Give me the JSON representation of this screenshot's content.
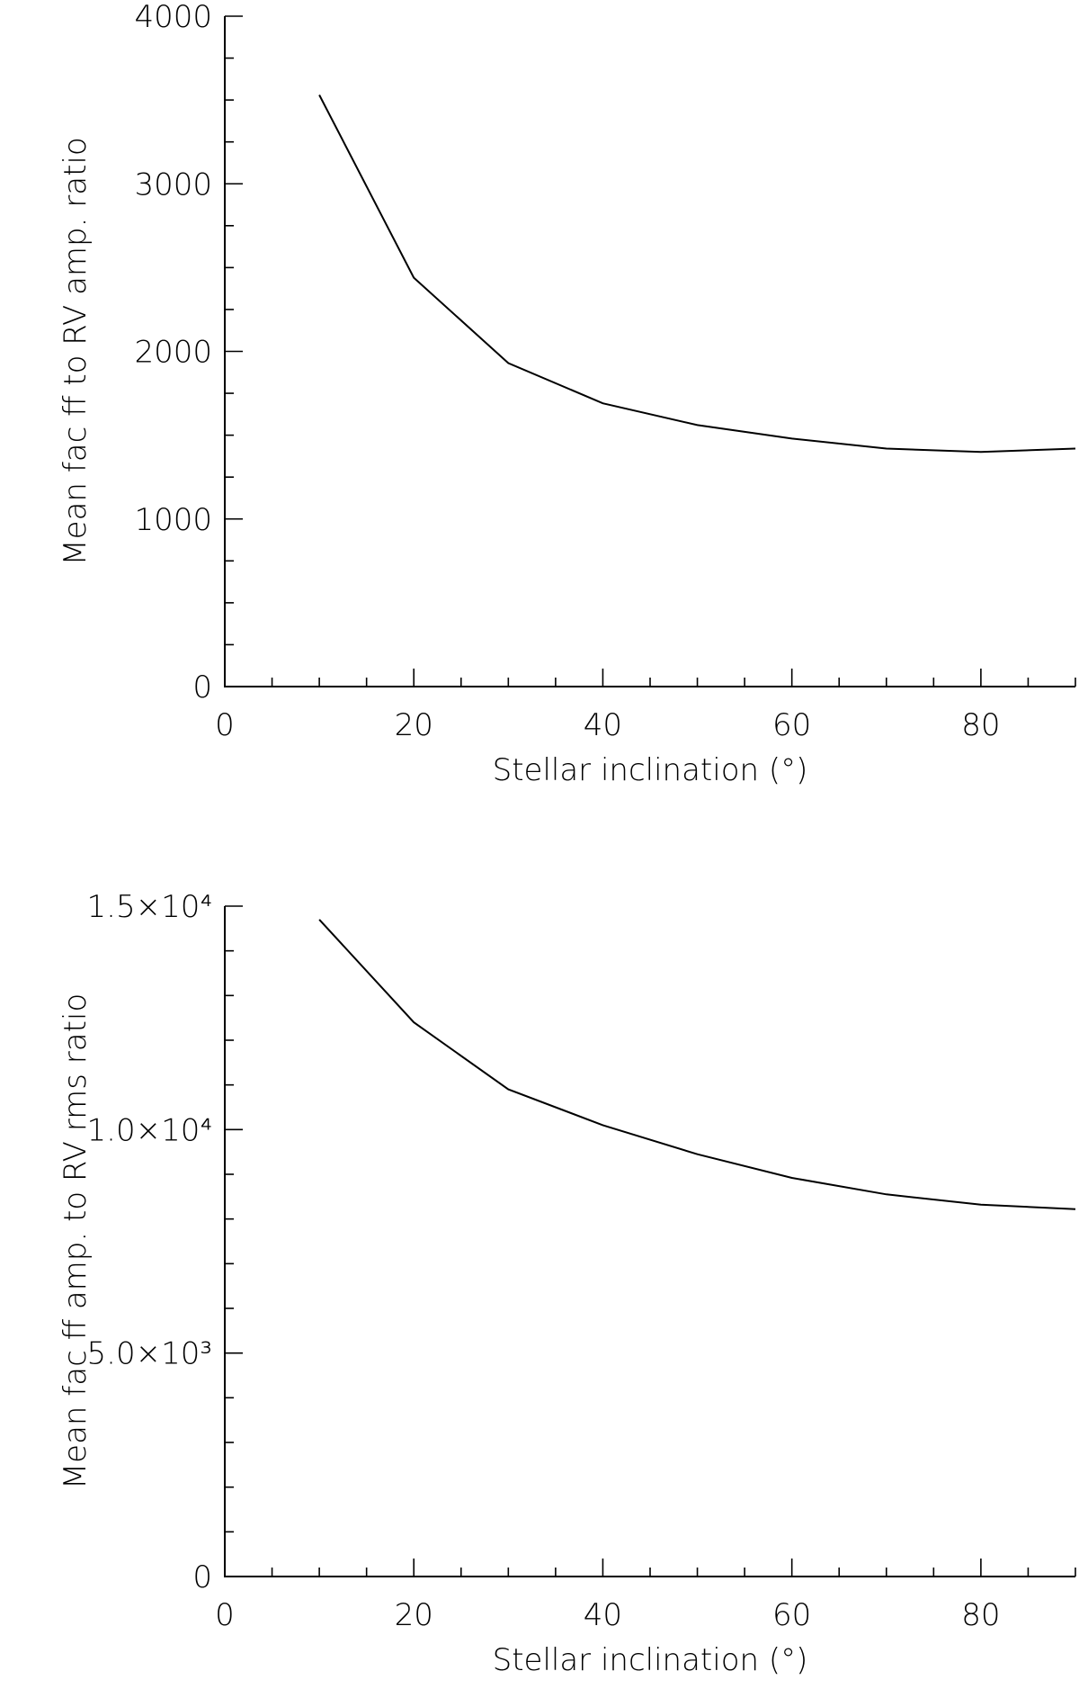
{
  "chart_data": [
    {
      "type": "line",
      "xlabel": "Stellar inclination (°)",
      "ylabel": "Mean fac ff to RV amp. ratio",
      "xlim": [
        0,
        90
      ],
      "ylim": [
        0,
        4000
      ],
      "xticks": [
        0,
        20,
        40,
        60,
        80
      ],
      "xtick_labels": [
        "0",
        "20",
        "40",
        "60",
        "80"
      ],
      "xminor_step": 5,
      "yticks": [
        0,
        1000,
        2000,
        3000,
        4000
      ],
      "ytick_labels": [
        "0",
        "1000",
        "2000",
        "3000",
        "4000"
      ],
      "yminor_step": 250,
      "grid": false,
      "series": [
        {
          "x": [
            10,
            20,
            30,
            40,
            50,
            60,
            70,
            80,
            90
          ],
          "y": [
            3530,
            2440,
            1930,
            1690,
            1560,
            1480,
            1420,
            1400,
            1420
          ]
        }
      ]
    },
    {
      "type": "line",
      "xlabel": "Stellar inclination (°)",
      "ylabel": "Mean fac ff amp. to RV rms ratio",
      "xlim": [
        0,
        90
      ],
      "ylim": [
        0,
        15000
      ],
      "xticks": [
        0,
        20,
        40,
        60,
        80
      ],
      "xtick_labels": [
        "0",
        "20",
        "40",
        "60",
        "80"
      ],
      "xminor_step": 5,
      "yticks": [
        0,
        5000,
        10000,
        15000
      ],
      "ytick_labels": [
        "0",
        "5.0×10³",
        "1.0×10⁴",
        "1.5×10⁴"
      ],
      "yminor_step": 1000,
      "grid": false,
      "series": [
        {
          "x": [
            10,
            20,
            30,
            40,
            50,
            60,
            70,
            80,
            90
          ],
          "y": [
            14700,
            12400,
            10900,
            10100,
            9450,
            8920,
            8550,
            8320,
            8220
          ]
        }
      ]
    }
  ]
}
